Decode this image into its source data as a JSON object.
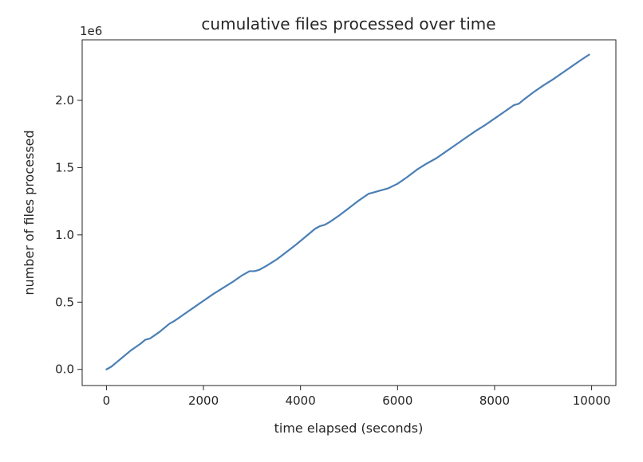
{
  "chart_data": {
    "type": "line",
    "title": "cumulative files processed over time",
    "xlabel": "time elapsed (seconds)",
    "ylabel": "number of files processed",
    "y_offset_label": "1e6",
    "xlim": [
      -500,
      10500
    ],
    "ylim": [
      -0.12,
      2.45
    ],
    "xticks": [
      0,
      2000,
      4000,
      6000,
      8000,
      10000
    ],
    "xtick_labels": [
      "0",
      "2000",
      "4000",
      "6000",
      "8000",
      "10000"
    ],
    "yticks": [
      0.0,
      0.5,
      1.0,
      1.5,
      2.0
    ],
    "ytick_labels": [
      "0.0",
      "0.5",
      "1.0",
      "1.5",
      "2.0"
    ],
    "grid": false,
    "line_color": "#4a7fb5",
    "series": [
      {
        "x": [
          0,
          100,
          200,
          300,
          400,
          500,
          600,
          700,
          800,
          900,
          1000,
          1100,
          1200,
          1300,
          1400,
          1500,
          1600,
          1700,
          1800,
          1900,
          2000,
          2200,
          2400,
          2600,
          2800,
          2950,
          3050,
          3150,
          3300,
          3500,
          3700,
          3900,
          4100,
          4300,
          4400,
          4500,
          4600,
          4800,
          5000,
          5200,
          5400,
          5500,
          5600,
          5800,
          6000,
          6200,
          6400,
          6600,
          6800,
          7000,
          7200,
          7400,
          7600,
          7800,
          8000,
          8200,
          8400,
          8500,
          8600,
          8800,
          9000,
          9200,
          9400,
          9600,
          9800,
          9950
        ],
        "y": [
          0.0,
          0.02,
          0.05,
          0.08,
          0.11,
          0.14,
          0.165,
          0.19,
          0.22,
          0.23,
          0.255,
          0.28,
          0.31,
          0.34,
          0.36,
          0.385,
          0.41,
          0.435,
          0.46,
          0.485,
          0.51,
          0.56,
          0.605,
          0.65,
          0.7,
          0.73,
          0.73,
          0.74,
          0.77,
          0.815,
          0.87,
          0.925,
          0.985,
          1.045,
          1.065,
          1.075,
          1.095,
          1.145,
          1.2,
          1.255,
          1.305,
          1.315,
          1.325,
          1.345,
          1.38,
          1.43,
          1.485,
          1.53,
          1.57,
          1.62,
          1.67,
          1.72,
          1.77,
          1.815,
          1.865,
          1.915,
          1.965,
          1.975,
          2.005,
          2.06,
          2.11,
          2.155,
          2.205,
          2.255,
          2.305,
          2.34
        ]
      }
    ]
  }
}
